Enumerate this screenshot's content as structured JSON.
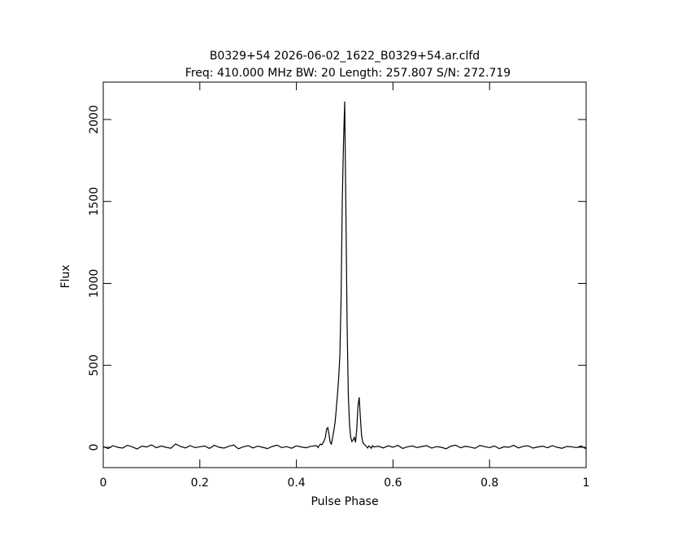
{
  "chart_data": {
    "type": "line",
    "title": "B0329+54 2026-06-02_1622_B0329+54.ar.clfd",
    "subtitle": "Freq: 410.000 MHz BW: 20 Length: 257.807 S/N: 272.719",
    "x_label": "Pulse Phase",
    "y_label": "Flux",
    "x": [
      0,
      0.01,
      0.02,
      0.03,
      0.04,
      0.05,
      0.06,
      0.07,
      0.08,
      0.09,
      0.1,
      0.11,
      0.12,
      0.13,
      0.14,
      0.15,
      0.16,
      0.17,
      0.18,
      0.19,
      0.2,
      0.21,
      0.22,
      0.23,
      0.24,
      0.25,
      0.26,
      0.27,
      0.28,
      0.29,
      0.3,
      0.31,
      0.32,
      0.33,
      0.34,
      0.35,
      0.36,
      0.37,
      0.38,
      0.39,
      0.4,
      0.41,
      0.42,
      0.43,
      0.44,
      0.4425,
      0.445,
      0.4475,
      0.45,
      0.4525,
      0.455,
      0.4575,
      0.46,
      0.4625,
      0.465,
      0.4675,
      0.47,
      0.4725,
      0.475,
      0.4775,
      0.48,
      0.4825,
      0.485,
      0.4875,
      0.49,
      0.4925,
      0.495,
      0.4975,
      0.5,
      0.5025,
      0.505,
      0.5075,
      0.51,
      0.5125,
      0.515,
      0.5175,
      0.52,
      0.5225,
      0.525,
      0.5275,
      0.53,
      0.5325,
      0.535,
      0.5375,
      0.54,
      0.5425,
      0.545,
      0.5475,
      0.55,
      0.5525,
      0.555,
      0.5575,
      0.56,
      0.57,
      0.58,
      0.59,
      0.6,
      0.61,
      0.62,
      0.63,
      0.64,
      0.65,
      0.66,
      0.67,
      0.68,
      0.69,
      0.7,
      0.71,
      0.72,
      0.73,
      0.74,
      0.75,
      0.76,
      0.77,
      0.78,
      0.79,
      0.8,
      0.81,
      0.82,
      0.83,
      0.84,
      0.85,
      0.86,
      0.87,
      0.88,
      0.89,
      0.9,
      0.91,
      0.92,
      0.93,
      0.94,
      0.95,
      0.96,
      0.97,
      0.98,
      0.99,
      1
    ],
    "series": [
      {
        "color": "#000000",
        "values": [
          5,
          -8,
          10,
          0,
          -5,
          12,
          3,
          -10,
          7,
          2,
          15,
          -3,
          8,
          0,
          -6,
          20,
          5,
          -4,
          10,
          -2,
          3,
          8,
          -7,
          12,
          0,
          -5,
          6,
          14,
          -9,
          3,
          10,
          -4,
          7,
          0,
          -8,
          5,
          13,
          -2,
          4,
          -6,
          9,
          2,
          -3,
          6,
          10,
          8,
          -2,
          12,
          20,
          15,
          25,
          40,
          60,
          110,
          120,
          80,
          30,
          20,
          60,
          100,
          150,
          230,
          320,
          420,
          560,
          900,
          1500,
          1850,
          2110,
          1450,
          750,
          320,
          140,
          60,
          35,
          45,
          60,
          30,
          110,
          250,
          305,
          180,
          70,
          30,
          20,
          12,
          5,
          -4,
          8,
          3,
          -6,
          10,
          2,
          6,
          -4,
          9,
          0,
          12,
          -7,
          3,
          8,
          -2,
          5,
          10,
          -5,
          4,
          0,
          -9,
          7,
          13,
          -3,
          6,
          1,
          -6,
          11,
          4,
          -2,
          8,
          -8,
          3,
          0,
          12,
          -4,
          6,
          9,
          -5,
          2,
          7,
          -3,
          10,
          0,
          -6,
          5,
          3,
          -2,
          8,
          -10
        ]
      }
    ],
    "xlim": [
      0,
      1
    ],
    "xticks": [
      0,
      0.2,
      0.4,
      0.6,
      0.8,
      1
    ],
    "ylim": [
      -124,
      2228
    ],
    "yticks": [
      0,
      500,
      1000,
      1500,
      2000
    ]
  }
}
